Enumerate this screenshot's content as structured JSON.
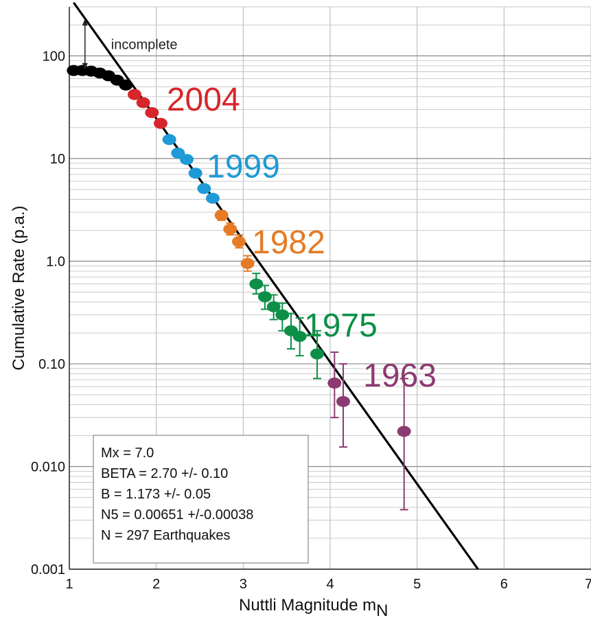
{
  "chart_data": {
    "type": "scatter",
    "xlabel": "Nuttli Magnitude  m",
    "xlabel_sub": "N",
    "ylabel": "Cumulative Rate (p.a.)",
    "xlim": [
      1,
      7
    ],
    "ylim": [
      0.001,
      300
    ],
    "yscale": "log",
    "grid": true,
    "x_ticks": [
      "1",
      "2",
      "3",
      "4",
      "5",
      "6",
      "7"
    ],
    "y_ticks": [
      {
        "value": 0.001,
        "label": "0.001"
      },
      {
        "value": 0.01,
        "label": "0.010"
      },
      {
        "value": 0.1,
        "label": "0.10"
      },
      {
        "value": 1,
        "label": "1.0"
      },
      {
        "value": 10,
        "label": "10"
      },
      {
        "value": 100,
        "label": "100"
      }
    ],
    "fit_line": {
      "x": [
        1.05,
        5.7
      ],
      "y": [
        330,
        0.001
      ]
    },
    "annotation": {
      "text": "incomplete",
      "x": 1.18,
      "y_top": 230,
      "y_bottom": 73
    },
    "series": [
      {
        "name": "",
        "color": "#000000",
        "points": [
          {
            "x": 1.05,
            "y": 72
          },
          {
            "x": 1.15,
            "y": 72
          },
          {
            "x": 1.25,
            "y": 71
          },
          {
            "x": 1.35,
            "y": 68
          },
          {
            "x": 1.45,
            "y": 64
          },
          {
            "x": 1.55,
            "y": 58
          },
          {
            "x": 1.65,
            "y": 52
          }
        ]
      },
      {
        "name": "2004",
        "color": "#d7262b",
        "points": [
          {
            "x": 1.75,
            "y": 42
          },
          {
            "x": 1.85,
            "y": 35
          },
          {
            "x": 1.95,
            "y": 28
          },
          {
            "x": 2.05,
            "y": 22
          }
        ]
      },
      {
        "name": "1999",
        "color": "#1e9ad6",
        "points": [
          {
            "x": 2.15,
            "y": 15.3
          },
          {
            "x": 2.25,
            "y": 11.3
          },
          {
            "x": 2.35,
            "y": 9.8
          },
          {
            "x": 2.45,
            "y": 7.2
          },
          {
            "x": 2.55,
            "y": 5.1
          },
          {
            "x": 2.65,
            "y": 4.1
          }
        ]
      },
      {
        "name": "1982",
        "color": "#e57b26",
        "points": [
          {
            "x": 2.75,
            "y": 2.8,
            "err": [
              2.5,
              3.1
            ]
          },
          {
            "x": 2.85,
            "y": 2.05,
            "err": [
              1.8,
              2.35
            ]
          },
          {
            "x": 2.95,
            "y": 1.55,
            "err": [
              1.35,
              1.8
            ]
          },
          {
            "x": 3.05,
            "y": 0.95,
            "err": [
              0.8,
              1.13
            ]
          }
        ]
      },
      {
        "name": "1975",
        "color": "#0d8f48",
        "points": [
          {
            "x": 3.15,
            "y": 0.6,
            "err": [
              0.48,
              0.76
            ]
          },
          {
            "x": 3.25,
            "y": 0.45,
            "err": [
              0.34,
              0.58
            ]
          },
          {
            "x": 3.35,
            "y": 0.36,
            "err": [
              0.27,
              0.47
            ]
          },
          {
            "x": 3.45,
            "y": 0.3,
            "err": [
              0.21,
              0.39
            ]
          },
          {
            "x": 3.55,
            "y": 0.21,
            "err": [
              0.14,
              0.31
            ]
          },
          {
            "x": 3.65,
            "y": 0.185,
            "err": [
              0.12,
              0.28
            ]
          },
          {
            "x": 3.85,
            "y": 0.125,
            "err": [
              0.072,
              0.21
            ]
          }
        ]
      },
      {
        "name": "1963",
        "color": "#8c3b72",
        "points": [
          {
            "x": 4.05,
            "y": 0.065,
            "err": [
              0.03,
              0.13
            ]
          },
          {
            "x": 4.15,
            "y": 0.043,
            "err": [
              0.0155,
              0.1
            ]
          },
          {
            "x": 4.85,
            "y": 0.022,
            "err": [
              0.0038,
              0.072
            ]
          }
        ]
      }
    ],
    "year_labels": [
      {
        "text": "2004",
        "color": "#d7262b",
        "x": 2.12,
        "y": 38
      },
      {
        "text": "1999",
        "color": "#1e9ad6",
        "x": 2.58,
        "y": 8.5
      },
      {
        "text": "1982",
        "color": "#e57b26",
        "x": 3.1,
        "y": 1.55
      },
      {
        "text": "1975",
        "color": "#0d8f48",
        "x": 3.7,
        "y": 0.24
      },
      {
        "text": "1963",
        "color": "#8c3b72",
        "x": 4.38,
        "y": 0.078
      }
    ],
    "stats_box": {
      "lines": [
        "Mx = 7.0",
        "BETA = 2.70  +/- 0.10",
        "B = 1.173  +/- 0.05",
        "N5 =  0.00651 +/-0.00038",
        "N = 297 Earthquakes"
      ]
    }
  }
}
